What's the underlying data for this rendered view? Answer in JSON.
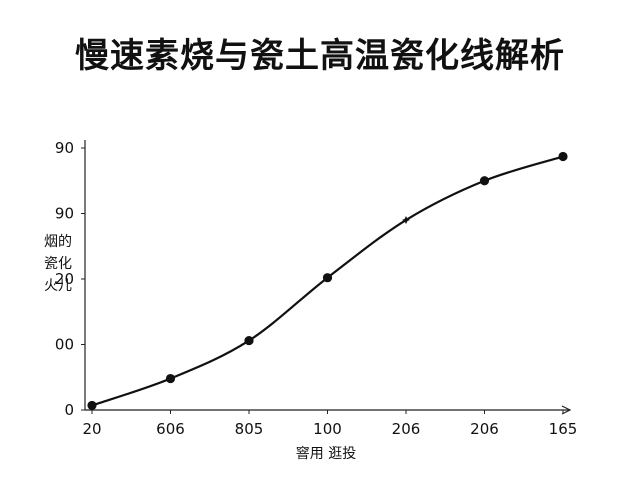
{
  "title": "慢速素烧与瓷土高温瓷化线解析",
  "chart_data": {
    "type": "line",
    "title": "慢速素烧与瓷土高温瓷化线解析",
    "x_tick_labels": [
      "20",
      "606",
      "805",
      "100",
      "206",
      "206",
      "165"
    ],
    "y_tick_labels": [
      "0",
      "00",
      "20",
      "90",
      "90"
    ],
    "xlabel": "窨用  逛投",
    "ylabel": "烟的\n瓷化\n火儿",
    "ylim": [
      0,
      4
    ],
    "grid": false,
    "legend": "none",
    "series": [
      {
        "x": [
          0,
          1,
          2,
          3,
          4,
          5,
          6
        ],
        "y": [
          0.07,
          0.48,
          1.06,
          2.02,
          2.9,
          3.5,
          3.87
        ]
      }
    ],
    "markers": [
      "dot",
      "dot",
      "dot",
      "dot",
      "star",
      "dot",
      "dot"
    ]
  }
}
